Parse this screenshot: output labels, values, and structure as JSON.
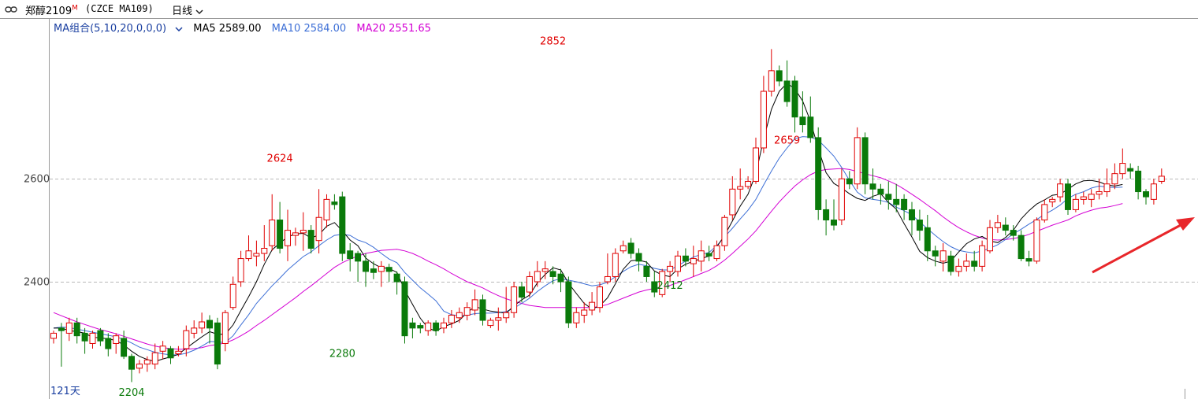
{
  "toolbar": {
    "title": "郑醇2109",
    "title_flag": "M",
    "code": "(CZCE MA109)",
    "period_label": "日线",
    "link_icon": "link-icon",
    "dropdown_icon": "chevron-down-icon"
  },
  "legend": {
    "indicator": "MA组合(5,10,20,0,0,0)",
    "ma5": "MA5 2589.00",
    "ma10": "MA10 2584.00",
    "ma20": "MA20 2551.65"
  },
  "footer": {
    "days_label": "121天"
  },
  "colors": {
    "up": "#e00000",
    "down": "#0a7a0a",
    "ma5": "#000000",
    "ma10": "#3d6fd6",
    "ma20": "#d400d4",
    "ytick": "#444444",
    "grid": "#b8b8b8",
    "arrow": "#e8262a"
  },
  "chart_data": {
    "type": "candlestick",
    "y_ticks": [
      2400,
      2600
    ],
    "grid": "dashed horizontal",
    "annotations": [
      {
        "text": "2852",
        "value": 2852,
        "kind": "high",
        "bar": 64
      },
      {
        "text": "2624",
        "value": 2624,
        "kind": "high",
        "bar": 29
      },
      {
        "text": "2659",
        "value": 2659,
        "kind": "high",
        "bar": 94
      },
      {
        "text": "2280",
        "value": 2280,
        "kind": "low",
        "bar": 37
      },
      {
        "text": "2204",
        "value": 2204,
        "kind": "low",
        "bar": 10
      },
      {
        "text": "2412",
        "value": 2412,
        "kind": "low",
        "bar": 79
      }
    ],
    "candles": [
      [
        2290,
        2300,
        2280,
        2305
      ],
      [
        2310,
        2305,
        2235,
        2320
      ],
      [
        2300,
        2320,
        2285,
        2330
      ],
      [
        2320,
        2295,
        2280,
        2330
      ],
      [
        2300,
        2285,
        2260,
        2310
      ],
      [
        2280,
        2300,
        2270,
        2305
      ],
      [
        2305,
        2285,
        2275,
        2310
      ],
      [
        2290,
        2270,
        2255,
        2300
      ],
      [
        2280,
        2295,
        2260,
        2300
      ],
      [
        2290,
        2255,
        2250,
        2305
      ],
      [
        2255,
        2230,
        2205,
        2260
      ],
      [
        2232,
        2240,
        2222,
        2248
      ],
      [
        2240,
        2248,
        2225,
        2255
      ],
      [
        2240,
        2262,
        2230,
        2280
      ],
      [
        2265,
        2275,
        2250,
        2285
      ],
      [
        2270,
        2252,
        2240,
        2275
      ],
      [
        2260,
        2265,
        2255,
        2275
      ],
      [
        2270,
        2305,
        2255,
        2315
      ],
      [
        2300,
        2310,
        2290,
        2325
      ],
      [
        2310,
        2322,
        2300,
        2340
      ],
      [
        2325,
        2310,
        2280,
        2335
      ],
      [
        2320,
        2240,
        2230,
        2330
      ],
      [
        2280,
        2340,
        2265,
        2345
      ],
      [
        2350,
        2395,
        2345,
        2410
      ],
      [
        2400,
        2445,
        2390,
        2460
      ],
      [
        2445,
        2460,
        2440,
        2490
      ],
      [
        2450,
        2455,
        2430,
        2480
      ],
      [
        2455,
        2465,
        2440,
        2510
      ],
      [
        2470,
        2520,
        2460,
        2570
      ],
      [
        2520,
        2465,
        2455,
        2555
      ],
      [
        2470,
        2500,
        2440,
        2540
      ],
      [
        2490,
        2495,
        2470,
        2505
      ],
      [
        2495,
        2500,
        2460,
        2535
      ],
      [
        2500,
        2465,
        2455,
        2510
      ],
      [
        2480,
        2525,
        2455,
        2580
      ],
      [
        2520,
        2560,
        2505,
        2570
      ],
      [
        2555,
        2550,
        2540,
        2570
      ],
      [
        2565,
        2455,
        2440,
        2575
      ],
      [
        2460,
        2445,
        2420,
        2475
      ],
      [
        2455,
        2440,
        2400,
        2460
      ],
      [
        2440,
        2420,
        2390,
        2455
      ],
      [
        2425,
        2418,
        2405,
        2440
      ],
      [
        2420,
        2430,
        2390,
        2440
      ],
      [
        2428,
        2420,
        2400,
        2435
      ],
      [
        2415,
        2400,
        2375,
        2420
      ],
      [
        2400,
        2295,
        2280,
        2410
      ],
      [
        2320,
        2310,
        2290,
        2330
      ],
      [
        2315,
        2310,
        2300,
        2320
      ],
      [
        2305,
        2320,
        2295,
        2325
      ],
      [
        2320,
        2305,
        2295,
        2325
      ],
      [
        2310,
        2320,
        2300,
        2330
      ],
      [
        2320,
        2335,
        2310,
        2345
      ],
      [
        2330,
        2340,
        2320,
        2350
      ],
      [
        2335,
        2350,
        2325,
        2360
      ],
      [
        2345,
        2365,
        2335,
        2385
      ],
      [
        2365,
        2325,
        2315,
        2375
      ],
      [
        2315,
        2325,
        2310,
        2330
      ],
      [
        2325,
        2330,
        2305,
        2350
      ],
      [
        2330,
        2340,
        2320,
        2390
      ],
      [
        2340,
        2390,
        2330,
        2400
      ],
      [
        2390,
        2370,
        2360,
        2400
      ],
      [
        2380,
        2410,
        2370,
        2420
      ],
      [
        2400,
        2420,
        2390,
        2440
      ],
      [
        2420,
        2425,
        2405,
        2440
      ],
      [
        2420,
        2410,
        2395,
        2430
      ],
      [
        2415,
        2400,
        2380,
        2425
      ],
      [
        2400,
        2320,
        2310,
        2410
      ],
      [
        2320,
        2340,
        2310,
        2350
      ],
      [
        2335,
        2345,
        2320,
        2360
      ],
      [
        2345,
        2360,
        2335,
        2380
      ],
      [
        2350,
        2390,
        2340,
        2400
      ],
      [
        2400,
        2410,
        2395,
        2455
      ],
      [
        2410,
        2455,
        2400,
        2465
      ],
      [
        2460,
        2470,
        2455,
        2480
      ],
      [
        2475,
        2455,
        2445,
        2485
      ],
      [
        2455,
        2440,
        2420,
        2465
      ],
      [
        2430,
        2410,
        2400,
        2440
      ],
      [
        2400,
        2380,
        2370,
        2420
      ],
      [
        2375,
        2420,
        2370,
        2425
      ],
      [
        2420,
        2430,
        2400,
        2440
      ],
      [
        2420,
        2450,
        2410,
        2460
      ],
      [
        2450,
        2440,
        2430,
        2465
      ],
      [
        2435,
        2445,
        2410,
        2470
      ],
      [
        2440,
        2460,
        2420,
        2480
      ],
      [
        2455,
        2450,
        2440,
        2470
      ],
      [
        2445,
        2470,
        2440,
        2480
      ],
      [
        2470,
        2525,
        2460,
        2530
      ],
      [
        2530,
        2580,
        2520,
        2605
      ],
      [
        2580,
        2585,
        2560,
        2620
      ],
      [
        2585,
        2595,
        2580,
        2605
      ],
      [
        2595,
        2660,
        2590,
        2680
      ],
      [
        2660,
        2770,
        2650,
        2800
      ],
      [
        2770,
        2810,
        2760,
        2852
      ],
      [
        2810,
        2790,
        2780,
        2820
      ],
      [
        2790,
        2750,
        2740,
        2830
      ],
      [
        2790,
        2720,
        2690,
        2800
      ],
      [
        2720,
        2705,
        2690,
        2770
      ],
      [
        2720,
        2680,
        2670,
        2760
      ],
      [
        2680,
        2540,
        2520,
        2700
      ],
      [
        2540,
        2520,
        2490,
        2560
      ],
      [
        2520,
        2510,
        2500,
        2560
      ],
      [
        2520,
        2600,
        2510,
        2620
      ],
      [
        2600,
        2590,
        2580,
        2615
      ],
      [
        2590,
        2680,
        2580,
        2700
      ],
      [
        2680,
        2590,
        2570,
        2690
      ],
      [
        2590,
        2580,
        2560,
        2620
      ],
      [
        2580,
        2570,
        2550,
        2590
      ],
      [
        2570,
        2560,
        2540,
        2595
      ],
      [
        2560,
        2550,
        2535,
        2590
      ],
      [
        2560,
        2540,
        2520,
        2570
      ],
      [
        2540,
        2520,
        2490,
        2555
      ],
      [
        2520,
        2500,
        2480,
        2540
      ],
      [
        2505,
        2460,
        2440,
        2530
      ],
      [
        2460,
        2450,
        2430,
        2470
      ],
      [
        2440,
        2460,
        2420,
        2475
      ],
      [
        2450,
        2420,
        2412,
        2460
      ],
      [
        2420,
        2430,
        2410,
        2445
      ],
      [
        2430,
        2440,
        2420,
        2455
      ],
      [
        2440,
        2430,
        2420,
        2460
      ],
      [
        2430,
        2470,
        2420,
        2480
      ],
      [
        2460,
        2505,
        2455,
        2520
      ],
      [
        2505,
        2515,
        2495,
        2530
      ],
      [
        2510,
        2500,
        2490,
        2525
      ],
      [
        2500,
        2490,
        2480,
        2510
      ],
      [
        2490,
        2445,
        2440,
        2500
      ],
      [
        2445,
        2440,
        2430,
        2460
      ],
      [
        2440,
        2520,
        2435,
        2525
      ],
      [
        2520,
        2550,
        2515,
        2560
      ],
      [
        2555,
        2560,
        2545,
        2565
      ],
      [
        2565,
        2590,
        2555,
        2600
      ],
      [
        2590,
        2540,
        2530,
        2600
      ],
      [
        2540,
        2560,
        2535,
        2570
      ],
      [
        2560,
        2565,
        2550,
        2575
      ],
      [
        2560,
        2570,
        2545,
        2580
      ],
      [
        2570,
        2575,
        2560,
        2600
      ],
      [
        2575,
        2590,
        2565,
        2620
      ],
      [
        2590,
        2610,
        2580,
        2630
      ],
      [
        2610,
        2630,
        2600,
        2659
      ],
      [
        2620,
        2615,
        2600,
        2630
      ],
      [
        2615,
        2575,
        2560,
        2625
      ],
      [
        2575,
        2565,
        2550,
        2580
      ],
      [
        2560,
        2590,
        2550,
        2600
      ],
      [
        2595,
        2605,
        2590,
        2620
      ]
    ],
    "ma5": [
      2310,
      2310,
      2305,
      2303,
      2300,
      2292,
      2291,
      2289,
      2286,
      2277,
      2265,
      2255,
      2249,
      2245,
      2250,
      2254,
      2259,
      2271,
      2282,
      2293,
      2303,
      2298,
      2298,
      2316,
      2344,
      2371,
      2400,
      2434,
      2462,
      2475,
      2487,
      2493,
      2494,
      2485,
      2491,
      2508,
      2515,
      2499,
      2481,
      2470,
      2446,
      2435,
      2427,
      2426,
      2418,
      2384,
      2356,
      2329,
      2310,
      2304,
      2313,
      2318,
      2325,
      2340,
      2352,
      2347,
      2343,
      2341,
      2339,
      2353,
      2365,
      2374,
      2398,
      2414,
      2427,
      2423,
      2397,
      2377,
      2358,
      2347,
      2353,
      2369,
      2396,
      2424,
      2441,
      2442,
      2438,
      2421,
      2413,
      2410,
      2425,
      2434,
      2440,
      2445,
      2450,
      2468,
      2490,
      2518,
      2547,
      2570,
      2610,
      2677,
      2735,
      2770,
      2786,
      2775,
      2751,
      2712,
      2659,
      2612,
      2591,
      2582,
      2571,
      2562,
      2558,
      2566,
      2571,
      2554,
      2541,
      2513,
      2487,
      2459,
      2447,
      2440,
      2436,
      2440,
      2458,
      2474,
      2483,
      2488,
      2479,
      2476,
      2486,
      2500,
      2522,
      2538,
      2551,
      2559,
      2568,
      2570,
      2580,
      2590,
      2596,
      2597,
      2594,
      2588,
      2586,
      2589
    ],
    "ma10": [
      2310,
      2312,
      2311,
      2308,
      2305,
      2302,
      2299,
      2296,
      2293,
      2288,
      2281,
      2273,
      2268,
      2263,
      2260,
      2258,
      2258,
      2261,
      2267,
      2275,
      2284,
      2283,
      2282,
      2295,
      2316,
      2336,
      2358,
      2375,
      2392,
      2407,
      2423,
      2436,
      2449,
      2458,
      2470,
      2481,
      2490,
      2492,
      2490,
      2481,
      2476,
      2467,
      2455,
      2444,
      2437,
      2418,
      2403,
      2388,
      2376,
      2363,
      2343,
      2336,
      2334,
      2335,
      2338,
      2339,
      2339,
      2340,
      2342,
      2349,
      2358,
      2368,
      2381,
      2392,
      2402,
      2406,
      2403,
      2400,
      2396,
      2392,
      2394,
      2399,
      2410,
      2420,
      2429,
      2434,
      2431,
      2426,
      2423,
      2423,
      2431,
      2440,
      2448,
      2453,
      2457,
      2470,
      2487,
      2504,
      2522,
      2539,
      2560,
      2588,
      2615,
      2640,
      2660,
      2678,
      2682,
      2681,
      2675,
      2660,
      2644,
      2622,
      2597,
      2574,
      2563,
      2560,
      2558,
      2554,
      2545,
      2538,
      2530,
      2516,
      2503,
      2490,
      2478,
      2468,
      2461,
      2458,
      2456,
      2460,
      2465,
      2472,
      2482,
      2493,
      2502,
      2512,
      2521,
      2531,
      2539,
      2549,
      2562,
      2570,
      2575,
      2582,
      2586,
      2584,
      2583,
      2584
    ],
    "ma20": [
      2340,
      2334,
      2328,
      2322,
      2317,
      2312,
      2307,
      2303,
      2299,
      2294,
      2289,
      2284,
      2279,
      2275,
      2272,
      2270,
      2269,
      2269,
      2270,
      2272,
      2276,
      2278,
      2281,
      2287,
      2295,
      2304,
      2315,
      2325,
      2336,
      2347,
      2358,
      2369,
      2381,
      2392,
      2404,
      2416,
      2428,
      2437,
      2444,
      2450,
      2455,
      2458,
      2461,
      2462,
      2463,
      2460,
      2455,
      2448,
      2440,
      2433,
      2425,
      2416,
      2408,
      2400,
      2394,
      2388,
      2380,
      2373,
      2367,
      2362,
      2358,
      2354,
      2352,
      2350,
      2350,
      2350,
      2350,
      2350,
      2350,
      2350,
      2352,
      2356,
      2362,
      2368,
      2374,
      2380,
      2384,
      2387,
      2390,
      2393,
      2398,
      2404,
      2410,
      2416,
      2422,
      2431,
      2442,
      2455,
      2469,
      2483,
      2499,
      2518,
      2537,
      2555,
      2571,
      2586,
      2598,
      2608,
      2615,
      2618,
      2619,
      2620,
      2618,
      2614,
      2610,
      2606,
      2602,
      2596,
      2589,
      2580,
      2570,
      2560,
      2549,
      2538,
      2526,
      2515,
      2505,
      2497,
      2490,
      2485,
      2482,
      2481,
      2482,
      2484,
      2487,
      2492,
      2498,
      2504,
      2510,
      2515,
      2520,
      2528,
      2534,
      2539,
      2543,
      2545,
      2548,
      2552
    ]
  }
}
